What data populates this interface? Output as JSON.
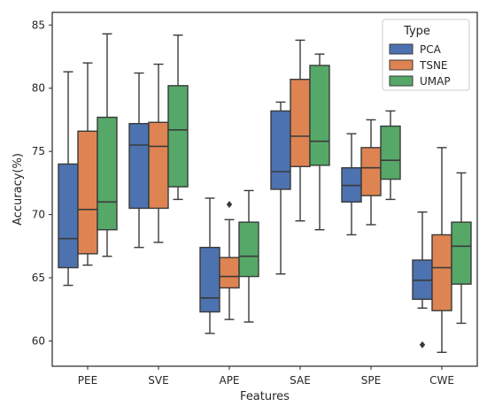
{
  "chart_data": {
    "type": "box",
    "xlabel": "Features",
    "ylabel": "Accuracy(%)",
    "ylim": [
      58,
      86
    ],
    "yticks": [
      60,
      65,
      70,
      75,
      80,
      85
    ],
    "categories": [
      "PEE",
      "SVE",
      "APE",
      "SAE",
      "SPE",
      "CWE"
    ],
    "grid": false,
    "legend": {
      "title": "Type",
      "position": "top-right"
    },
    "series": [
      {
        "name": "PCA",
        "color": "#4c72b0",
        "boxes": [
          {
            "min": 64.4,
            "q1": 65.8,
            "median": 68.1,
            "q3": 74.0,
            "max": 81.3
          },
          {
            "min": 67.4,
            "q1": 70.5,
            "median": 75.5,
            "q3": 77.2,
            "max": 81.2
          },
          {
            "min": 60.6,
            "q1": 62.3,
            "median": 63.4,
            "q3": 67.4,
            "max": 71.3
          },
          {
            "min": 65.3,
            "q1": 72.0,
            "median": 73.4,
            "q3": 78.2,
            "max": 78.9
          },
          {
            "min": 68.4,
            "q1": 71.0,
            "median": 72.3,
            "q3": 73.7,
            "max": 76.4
          },
          {
            "min": 62.6,
            "q1": 63.3,
            "median": 64.8,
            "q3": 66.4,
            "max": 70.2
          }
        ]
      },
      {
        "name": "TSNE",
        "color": "#dd8452",
        "boxes": [
          {
            "min": 66.0,
            "q1": 66.9,
            "median": 70.4,
            "q3": 76.6,
            "max": 82.0
          },
          {
            "min": 67.8,
            "q1": 70.5,
            "median": 75.4,
            "q3": 77.3,
            "max": 81.9
          },
          {
            "min": 61.7,
            "q1": 64.2,
            "median": 65.1,
            "q3": 66.6,
            "max": 69.6,
            "outliers": [
              70.8
            ]
          },
          {
            "min": 69.5,
            "q1": 73.8,
            "median": 76.2,
            "q3": 80.7,
            "max": 83.8
          },
          {
            "min": 69.2,
            "q1": 71.5,
            "median": 73.7,
            "q3": 75.3,
            "max": 77.5
          },
          {
            "min": 59.1,
            "q1": 62.4,
            "median": 65.8,
            "q3": 68.4,
            "max": 75.3
          }
        ]
      },
      {
        "name": "UMAP",
        "color": "#55a868",
        "boxes": [
          {
            "min": 66.7,
            "q1": 68.8,
            "median": 71.0,
            "q3": 77.7,
            "max": 84.3
          },
          {
            "min": 71.2,
            "q1": 72.2,
            "median": 76.7,
            "q3": 80.2,
            "max": 84.2
          },
          {
            "min": 61.5,
            "q1": 65.1,
            "median": 66.7,
            "q3": 69.4,
            "max": 71.9
          },
          {
            "min": 68.8,
            "q1": 73.9,
            "median": 75.8,
            "q3": 81.8,
            "max": 82.7
          },
          {
            "min": 71.2,
            "q1": 72.8,
            "median": 74.3,
            "q3": 77.0,
            "max": 78.2
          },
          {
            "min": 61.4,
            "q1": 64.5,
            "median": 67.5,
            "q3": 69.4,
            "max": 73.3
          }
        ],
        "outliers_by_category": {}
      }
    ],
    "extra_outliers": [
      {
        "series": "PCA",
        "category": "CWE",
        "value": 59.7
      }
    ]
  }
}
